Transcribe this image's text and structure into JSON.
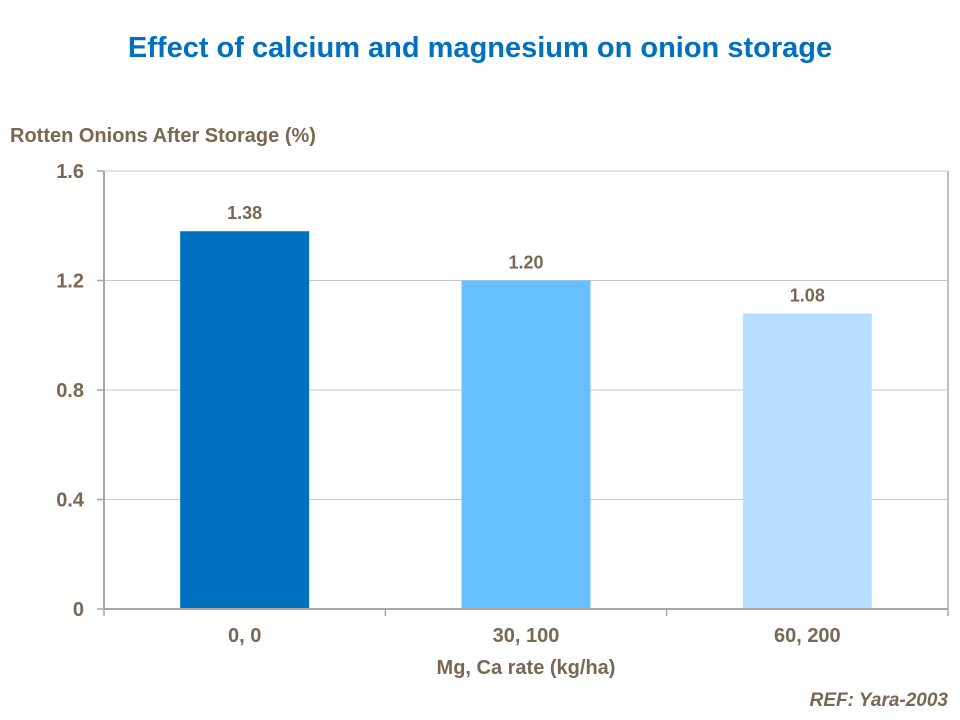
{
  "chart_data": {
    "type": "bar",
    "title": "Effect of calcium and magnesium on onion storage",
    "ylabel": "Rotten Onions After Storage (%)",
    "xlabel": "Mg, Ca rate (kg/ha)",
    "categories": [
      "0, 0",
      "30, 100",
      "60, 200"
    ],
    "values": [
      1.38,
      1.2,
      1.08
    ],
    "data_labels": [
      "1.38",
      "1.20",
      "1.08"
    ],
    "bar_colors": [
      "#0070C0",
      "#66BFFF",
      "#B7DEFF"
    ],
    "ylim": [
      0,
      1.6
    ],
    "yticks": [
      0,
      0.4,
      0.8,
      1.2,
      1.6
    ],
    "ytick_labels": [
      "0",
      "0.4",
      "0.8",
      "1.2",
      "1.6"
    ],
    "grid": true,
    "legend": "none"
  },
  "footer": {
    "reference": "REF: Yara-2003"
  },
  "colors": {
    "title": "#0070C0",
    "text": "#7A6752",
    "axis": "#A6A6A6"
  }
}
